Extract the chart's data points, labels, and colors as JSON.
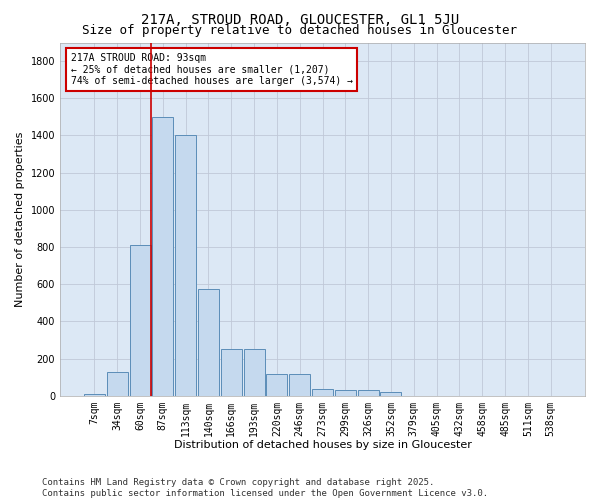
{
  "title": "217A, STROUD ROAD, GLOUCESTER, GL1 5JU",
  "subtitle": "Size of property relative to detached houses in Gloucester",
  "xlabel": "Distribution of detached houses by size in Gloucester",
  "ylabel": "Number of detached properties",
  "categories": [
    "7sqm",
    "34sqm",
    "60sqm",
    "87sqm",
    "113sqm",
    "140sqm",
    "166sqm",
    "193sqm",
    "220sqm",
    "246sqm",
    "273sqm",
    "299sqm",
    "326sqm",
    "352sqm",
    "379sqm",
    "405sqm",
    "432sqm",
    "458sqm",
    "485sqm",
    "511sqm",
    "538sqm"
  ],
  "values": [
    10,
    130,
    810,
    1500,
    1400,
    575,
    250,
    250,
    115,
    115,
    35,
    30,
    30,
    20,
    0,
    0,
    0,
    0,
    0,
    0,
    0
  ],
  "bar_color": "#c5d9ee",
  "bar_edge_color": "#5b8db8",
  "vline_x_index": 3,
  "vline_color": "#cc0000",
  "ylim": [
    0,
    1900
  ],
  "yticks": [
    0,
    200,
    400,
    600,
    800,
    1000,
    1200,
    1400,
    1600,
    1800
  ],
  "annotation_text": "217A STROUD ROAD: 93sqm\n← 25% of detached houses are smaller (1,207)\n74% of semi-detached houses are larger (3,574) →",
  "annotation_box_color": "#ffffff",
  "annotation_box_edge": "#cc0000",
  "footer_text": "Contains HM Land Registry data © Crown copyright and database right 2025.\nContains public sector information licensed under the Open Government Licence v3.0.",
  "background_color": "#ffffff",
  "grid_color": "#c0c8d8",
  "ax_bg_color": "#dce8f5",
  "title_fontsize": 10,
  "subtitle_fontsize": 9,
  "axis_label_fontsize": 8,
  "tick_fontsize": 7,
  "annotation_fontsize": 7,
  "footer_fontsize": 6.5
}
